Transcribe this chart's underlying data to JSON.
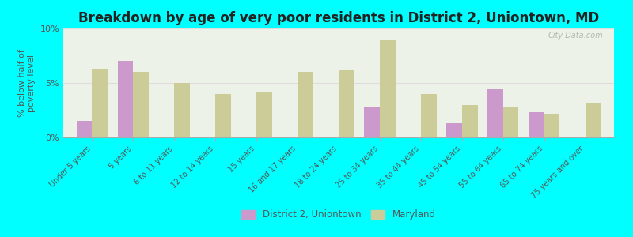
{
  "title": "Breakdown by age of very poor residents in District 2, Uniontown, MD",
  "ylabel": "% below half of\npoverty level",
  "categories": [
    "Under 5 years",
    "5 years",
    "6 to 11 years",
    "12 to 14 years",
    "15 years",
    "16 and 17 years",
    "18 to 24 years",
    "25 to 34 years",
    "35 to 44 years",
    "45 to 54 years",
    "55 to 64 years",
    "65 to 74 years",
    "75 years and over"
  ],
  "district_values": [
    1.5,
    7.0,
    0.0,
    0.0,
    0.0,
    0.0,
    0.0,
    2.8,
    0.0,
    1.3,
    4.4,
    2.3,
    0.0
  ],
  "maryland_values": [
    6.3,
    6.0,
    5.0,
    4.0,
    4.2,
    6.0,
    6.2,
    9.0,
    4.0,
    3.0,
    2.8,
    2.2,
    3.2
  ],
  "district_color": "#cc99cc",
  "maryland_color": "#cccc99",
  "bg_outer": "#00ffff",
  "bg_plot": "#edf2e8",
  "ylim": [
    0,
    10
  ],
  "yticks": [
    0,
    5,
    10
  ],
  "ytick_labels": [
    "0%",
    "5%",
    "10%"
  ],
  "legend_district": "District 2, Uniontown",
  "legend_maryland": "Maryland",
  "title_fontsize": 12,
  "label_fontsize": 7.0,
  "tick_fontsize": 8,
  "bar_width": 0.38
}
